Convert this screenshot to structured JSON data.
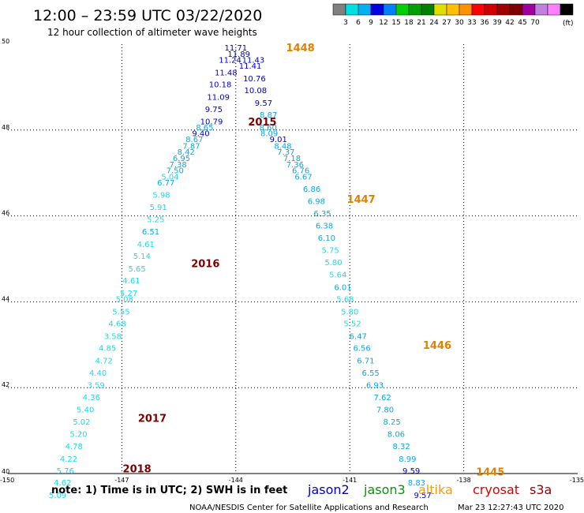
{
  "header": {
    "title": "12:00 – 23:59 UTC 03/22/2020",
    "subtitle": "12 hour collection of altimeter wave heights",
    "unit": "(ft)"
  },
  "colorbar": {
    "colors": [
      "#808080",
      "#00e0e0",
      "#00b0f0",
      "#0000e0",
      "#0080ff",
      "#00d000",
      "#00a000",
      "#008000",
      "#e0e000",
      "#ffc000",
      "#ff9000",
      "#ff0000",
      "#d00000",
      "#a00000",
      "#800000",
      "#a000a0",
      "#c080e0",
      "#ff80ff",
      "#000000"
    ],
    "labels": [
      "3",
      "6",
      "9",
      "12",
      "15",
      "18",
      "21",
      "24",
      "27",
      "30",
      "33",
      "36",
      "39",
      "42",
      "45",
      "70"
    ]
  },
  "footer": {
    "note": "note:  1) Time is in UTC;  2) SWH is in feet",
    "credit": "NOAA/NESDIS Center for Satellite Applications and Research",
    "timestamp": "Mar 23 12:27:43 UTC 2020"
  },
  "chart_data": {
    "type": "scatter",
    "title": "12:00 – 23:59 UTC 03/22/2020",
    "subtitle": "12 hour collection of altimeter wave heights",
    "xlim": [
      -150,
      -135
    ],
    "ylim": [
      40,
      50
    ],
    "x_ticks": [
      "-150",
      "-147",
      "-144",
      "-141",
      "-138",
      "-135"
    ],
    "y_ticks": [
      "40",
      "42",
      "44",
      "46",
      "48",
      "50"
    ],
    "grid": true,
    "satellites": [
      {
        "name": "jason2",
        "color": "#0000cc"
      },
      {
        "name": "jason3",
        "color": "#009900"
      },
      {
        "name": "altika",
        "color": "#ff9900"
      },
      {
        "name": "cryosat",
        "color": "#dd0000"
      },
      {
        "name": "s3a",
        "color": "#990000"
      }
    ],
    "pass_labels": [
      {
        "text": "1448",
        "lon": -142.3,
        "lat": 49.93,
        "color": "#e08000"
      },
      {
        "text": "2015",
        "lon": -143.3,
        "lat": 48.2,
        "color": "#800000"
      },
      {
        "text": "1447",
        "lon": -140.7,
        "lat": 46.4,
        "color": "#e08000"
      },
      {
        "text": "2016",
        "lon": -144.8,
        "lat": 44.9,
        "color": "#800000"
      },
      {
        "text": "1446",
        "lon": -138.7,
        "lat": 43.0,
        "color": "#e08000"
      },
      {
        "text": "2017",
        "lon": -146.2,
        "lat": 41.3,
        "color": "#800000"
      },
      {
        "text": "2018",
        "lon": -146.6,
        "lat": 40.12,
        "color": "#800000"
      },
      {
        "text": "1445",
        "lon": -137.3,
        "lat": 40.05,
        "color": "#e08000"
      }
    ],
    "series": [
      {
        "name": "1448",
        "points": [
          [
            -144.0,
            49.93,
            "11.71"
          ],
          [
            -143.92,
            49.78,
            "11.89"
          ],
          [
            -143.54,
            49.64,
            "11.43"
          ],
          [
            -144.15,
            49.64,
            "11.24"
          ],
          [
            -143.62,
            49.5,
            "11.41"
          ],
          [
            -144.26,
            49.35,
            "11.48"
          ],
          [
            -143.51,
            49.21,
            "10.76"
          ],
          [
            -144.41,
            49.07,
            "10.18"
          ],
          [
            -143.48,
            48.93,
            "10.08"
          ],
          [
            -144.46,
            48.78,
            "11.09"
          ],
          [
            -143.27,
            48.64,
            "9.57"
          ],
          [
            -144.58,
            48.49,
            "9.75"
          ],
          [
            -143.14,
            48.36,
            "8.87"
          ],
          [
            -144.64,
            48.21,
            "10.79"
          ],
          [
            -143.15,
            48.07,
            "8.60"
          ],
          [
            -144.82,
            48.07,
            "8.65"
          ],
          [
            -143.12,
            47.93,
            "8.09"
          ],
          [
            -144.92,
            47.93,
            "9.40"
          ],
          [
            -142.88,
            47.79,
            "9.01"
          ],
          [
            -145.09,
            47.79,
            "8.67"
          ],
          [
            -142.76,
            47.64,
            "8.48"
          ],
          [
            -145.17,
            47.64,
            "7.87"
          ],
          [
            -142.68,
            47.5,
            "7.37"
          ],
          [
            -145.31,
            47.5,
            "8.42"
          ],
          [
            -142.52,
            47.35,
            "7.18"
          ],
          [
            -145.43,
            47.35,
            "6.95"
          ],
          [
            -142.44,
            47.21,
            "7.36"
          ],
          [
            -145.52,
            47.21,
            "7.38"
          ],
          [
            -142.29,
            47.07,
            "6.76"
          ],
          [
            -145.6,
            47.07,
            "7.50"
          ],
          [
            -142.22,
            46.92,
            "6.67"
          ],
          [
            -145.73,
            46.92,
            "5.04"
          ]
        ]
      },
      {
        "name": "2015/1447",
        "points": [
          [
            -145.84,
            46.78,
            "6.77"
          ],
          [
            -142.0,
            46.64,
            "6.86"
          ],
          [
            -145.96,
            46.5,
            "5.98"
          ],
          [
            -141.88,
            46.35,
            "6.98"
          ],
          [
            -146.04,
            46.21,
            "5.91"
          ],
          [
            -141.72,
            46.07,
            "6.35"
          ],
          [
            -146.11,
            45.93,
            "5.25"
          ],
          [
            -141.67,
            45.78,
            "6.38"
          ],
          [
            -146.24,
            45.64,
            "6.51"
          ],
          [
            -141.61,
            45.5,
            "6.10"
          ],
          [
            -146.37,
            45.35,
            "4.61"
          ],
          [
            -141.51,
            45.21,
            "5.75"
          ],
          [
            -146.47,
            45.07,
            "5.14"
          ],
          [
            -141.43,
            44.93,
            "5.80"
          ],
          [
            -146.6,
            44.78,
            "5.65"
          ],
          [
            -141.31,
            44.64,
            "5.64"
          ],
          [
            -146.75,
            44.5,
            "4.61"
          ],
          [
            -141.18,
            44.35,
            "6.01"
          ],
          [
            -146.82,
            44.21,
            "5.27"
          ],
          [
            -141.12,
            44.07,
            "5.68"
          ],
          [
            -146.93,
            44.07,
            "5.08"
          ],
          [
            -141.0,
            43.78,
            "5.80"
          ],
          [
            -147.02,
            43.78,
            "5.55"
          ],
          [
            -140.93,
            43.5,
            "5.52"
          ],
          [
            -147.12,
            43.5,
            "4.68"
          ],
          [
            -140.78,
            43.21,
            "6.47"
          ],
          [
            -147.24,
            43.21,
            "3.58"
          ],
          [
            -140.68,
            42.93,
            "6.56"
          ],
          [
            -147.38,
            42.93,
            "4.85"
          ],
          [
            -140.58,
            42.64,
            "6.71"
          ],
          [
            -147.47,
            42.64,
            "4.72"
          ]
        ]
      },
      {
        "name": "2016/1446",
        "points": [
          [
            -140.45,
            42.35,
            "6.55"
          ],
          [
            -147.63,
            42.35,
            "4.40"
          ],
          [
            -140.34,
            42.07,
            "6.93"
          ],
          [
            -147.68,
            42.07,
            "3.59"
          ],
          [
            -140.14,
            41.78,
            "7.62"
          ],
          [
            -147.8,
            41.78,
            "4.36"
          ],
          [
            -140.07,
            41.5,
            "7.80"
          ],
          [
            -147.96,
            41.5,
            "5.40"
          ],
          [
            -139.89,
            41.21,
            "8.25"
          ],
          [
            -148.06,
            41.21,
            "5.02"
          ],
          [
            -139.78,
            40.93,
            "8.06"
          ],
          [
            -148.14,
            40.93,
            "5.20"
          ],
          [
            -139.64,
            40.64,
            "8.32"
          ],
          [
            -148.26,
            40.64,
            "4.78"
          ],
          [
            -139.48,
            40.35,
            "8.99"
          ],
          [
            -148.4,
            40.35,
            "4.22"
          ],
          [
            -139.38,
            40.07,
            "9.59"
          ],
          [
            -148.49,
            40.07,
            "5.76"
          ],
          [
            -139.24,
            39.8,
            "8.83"
          ],
          [
            -148.56,
            39.8,
            "4.62"
          ],
          [
            -139.08,
            39.5,
            "9.57"
          ],
          [
            -148.69,
            39.5,
            "5.09"
          ]
        ]
      }
    ]
  }
}
